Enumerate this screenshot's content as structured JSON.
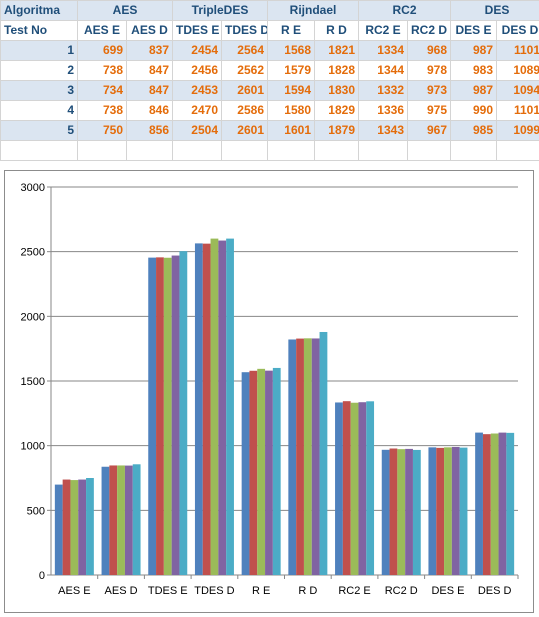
{
  "table": {
    "group_header_label": "Algoritma",
    "test_header_label": "Test No",
    "groups": [
      "AES",
      "TripleDES",
      "Rijndael",
      "RC2",
      "DES"
    ],
    "columns": [
      "AES E",
      "AES D",
      "TDES E",
      "TDES D",
      "R E",
      "R D",
      "RC2 E",
      "RC2 D",
      "DES E",
      "DES D"
    ],
    "rows": [
      {
        "test": "1",
        "values": [
          "699",
          "837",
          "2454",
          "2564",
          "1568",
          "1821",
          "1334",
          "968",
          "987",
          "1101"
        ]
      },
      {
        "test": "2",
        "values": [
          "738",
          "847",
          "2456",
          "2562",
          "1579",
          "1828",
          "1344",
          "978",
          "983",
          "1089"
        ]
      },
      {
        "test": "3",
        "values": [
          "734",
          "847",
          "2453",
          "2601",
          "1594",
          "1830",
          "1332",
          "973",
          "987",
          "1094"
        ]
      },
      {
        "test": "4",
        "values": [
          "738",
          "846",
          "2470",
          "2586",
          "1580",
          "1829",
          "1336",
          "975",
          "990",
          "1101"
        ]
      },
      {
        "test": "5",
        "values": [
          "750",
          "856",
          "2504",
          "2601",
          "1601",
          "1879",
          "1343",
          "967",
          "985",
          "1099"
        ]
      }
    ]
  },
  "chart_data": {
    "type": "bar",
    "categories": [
      "AES E",
      "AES D",
      "TDES E",
      "TDES D",
      "R E",
      "R D",
      "RC2 E",
      "RC2 D",
      "DES E",
      "DES D"
    ],
    "series": [
      {
        "values": [
          699,
          837,
          2454,
          2564,
          1568,
          1821,
          1334,
          968,
          987,
          1101
        ],
        "color": "#4f81bd"
      },
      {
        "values": [
          738,
          847,
          2456,
          2562,
          1579,
          1828,
          1344,
          978,
          983,
          1089
        ],
        "color": "#c0504d"
      },
      {
        "values": [
          734,
          847,
          2453,
          2601,
          1594,
          1830,
          1332,
          973,
          987,
          1094
        ],
        "color": "#9bbb59"
      },
      {
        "values": [
          738,
          846,
          2470,
          2586,
          1580,
          1829,
          1336,
          975,
          990,
          1101
        ],
        "color": "#8064a2"
      },
      {
        "values": [
          750,
          856,
          2504,
          2601,
          1601,
          1879,
          1343,
          967,
          985,
          1099
        ],
        "color": "#4bacc6"
      }
    ],
    "ylim": [
      0,
      3000
    ],
    "yticks": [
      0,
      500,
      1000,
      1500,
      2000,
      2500,
      3000
    ],
    "grid": true,
    "legend": "none"
  }
}
